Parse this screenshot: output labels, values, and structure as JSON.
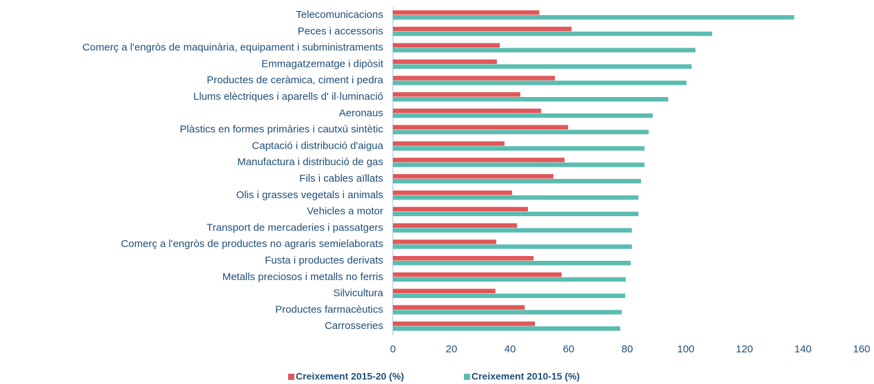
{
  "chart_data": {
    "type": "barh",
    "categories": [
      "Telecomunicacions",
      "Peces i accessoris",
      "Comerç a l'engròs de maquinària, equipament i subministraments",
      "Emmagatzematge i dipòsit",
      "Productes de ceràmica, ciment i pedra",
      "Llums elèctriques i aparells d' il·luminació",
      "Aeronaus",
      "Plàstics en formes primàries i cautxú sintètic",
      "Captació i distribució d'aigua",
      "Manufactura i distribució de gas",
      "Fils i cables aïllats",
      "Olis i grasses vegetals i animals",
      "Vehicles a motor",
      "Transport de mercaderies i passatgers",
      "Comerç a l'engròs de productes no agraris semielaborats",
      "Fusta i productes derivats",
      "Metalls preciosos i metalls no ferris",
      "Silvicultura",
      "Productes farmacèutics",
      "Carrosseries"
    ],
    "series": [
      {
        "name": "Creixement 2015-20 (%)",
        "color": "#e15759",
        "values": [
          50,
          61,
          36.5,
          35.5,
          55.3,
          43.5,
          50.6,
          59.8,
          38.1,
          58.6,
          54.8,
          40.7,
          46.1,
          42.4,
          35.3,
          48,
          57.6,
          35,
          45,
          48.5
        ]
      },
      {
        "name": "Creixement 2010-15 (%)",
        "color": "#5bbcb0",
        "values": [
          137,
          109,
          103.3,
          102,
          100.2,
          94,
          88.7,
          87.3,
          85.9,
          85.9,
          84.7,
          83.8,
          83.8,
          81.6,
          81.6,
          81.2,
          79.5,
          79.3,
          78.1,
          77.6
        ]
      }
    ],
    "xlim": [
      0,
      160
    ],
    "xticks": [
      0,
      20,
      40,
      60,
      80,
      100,
      120,
      140,
      160
    ],
    "legend": "bottom"
  }
}
